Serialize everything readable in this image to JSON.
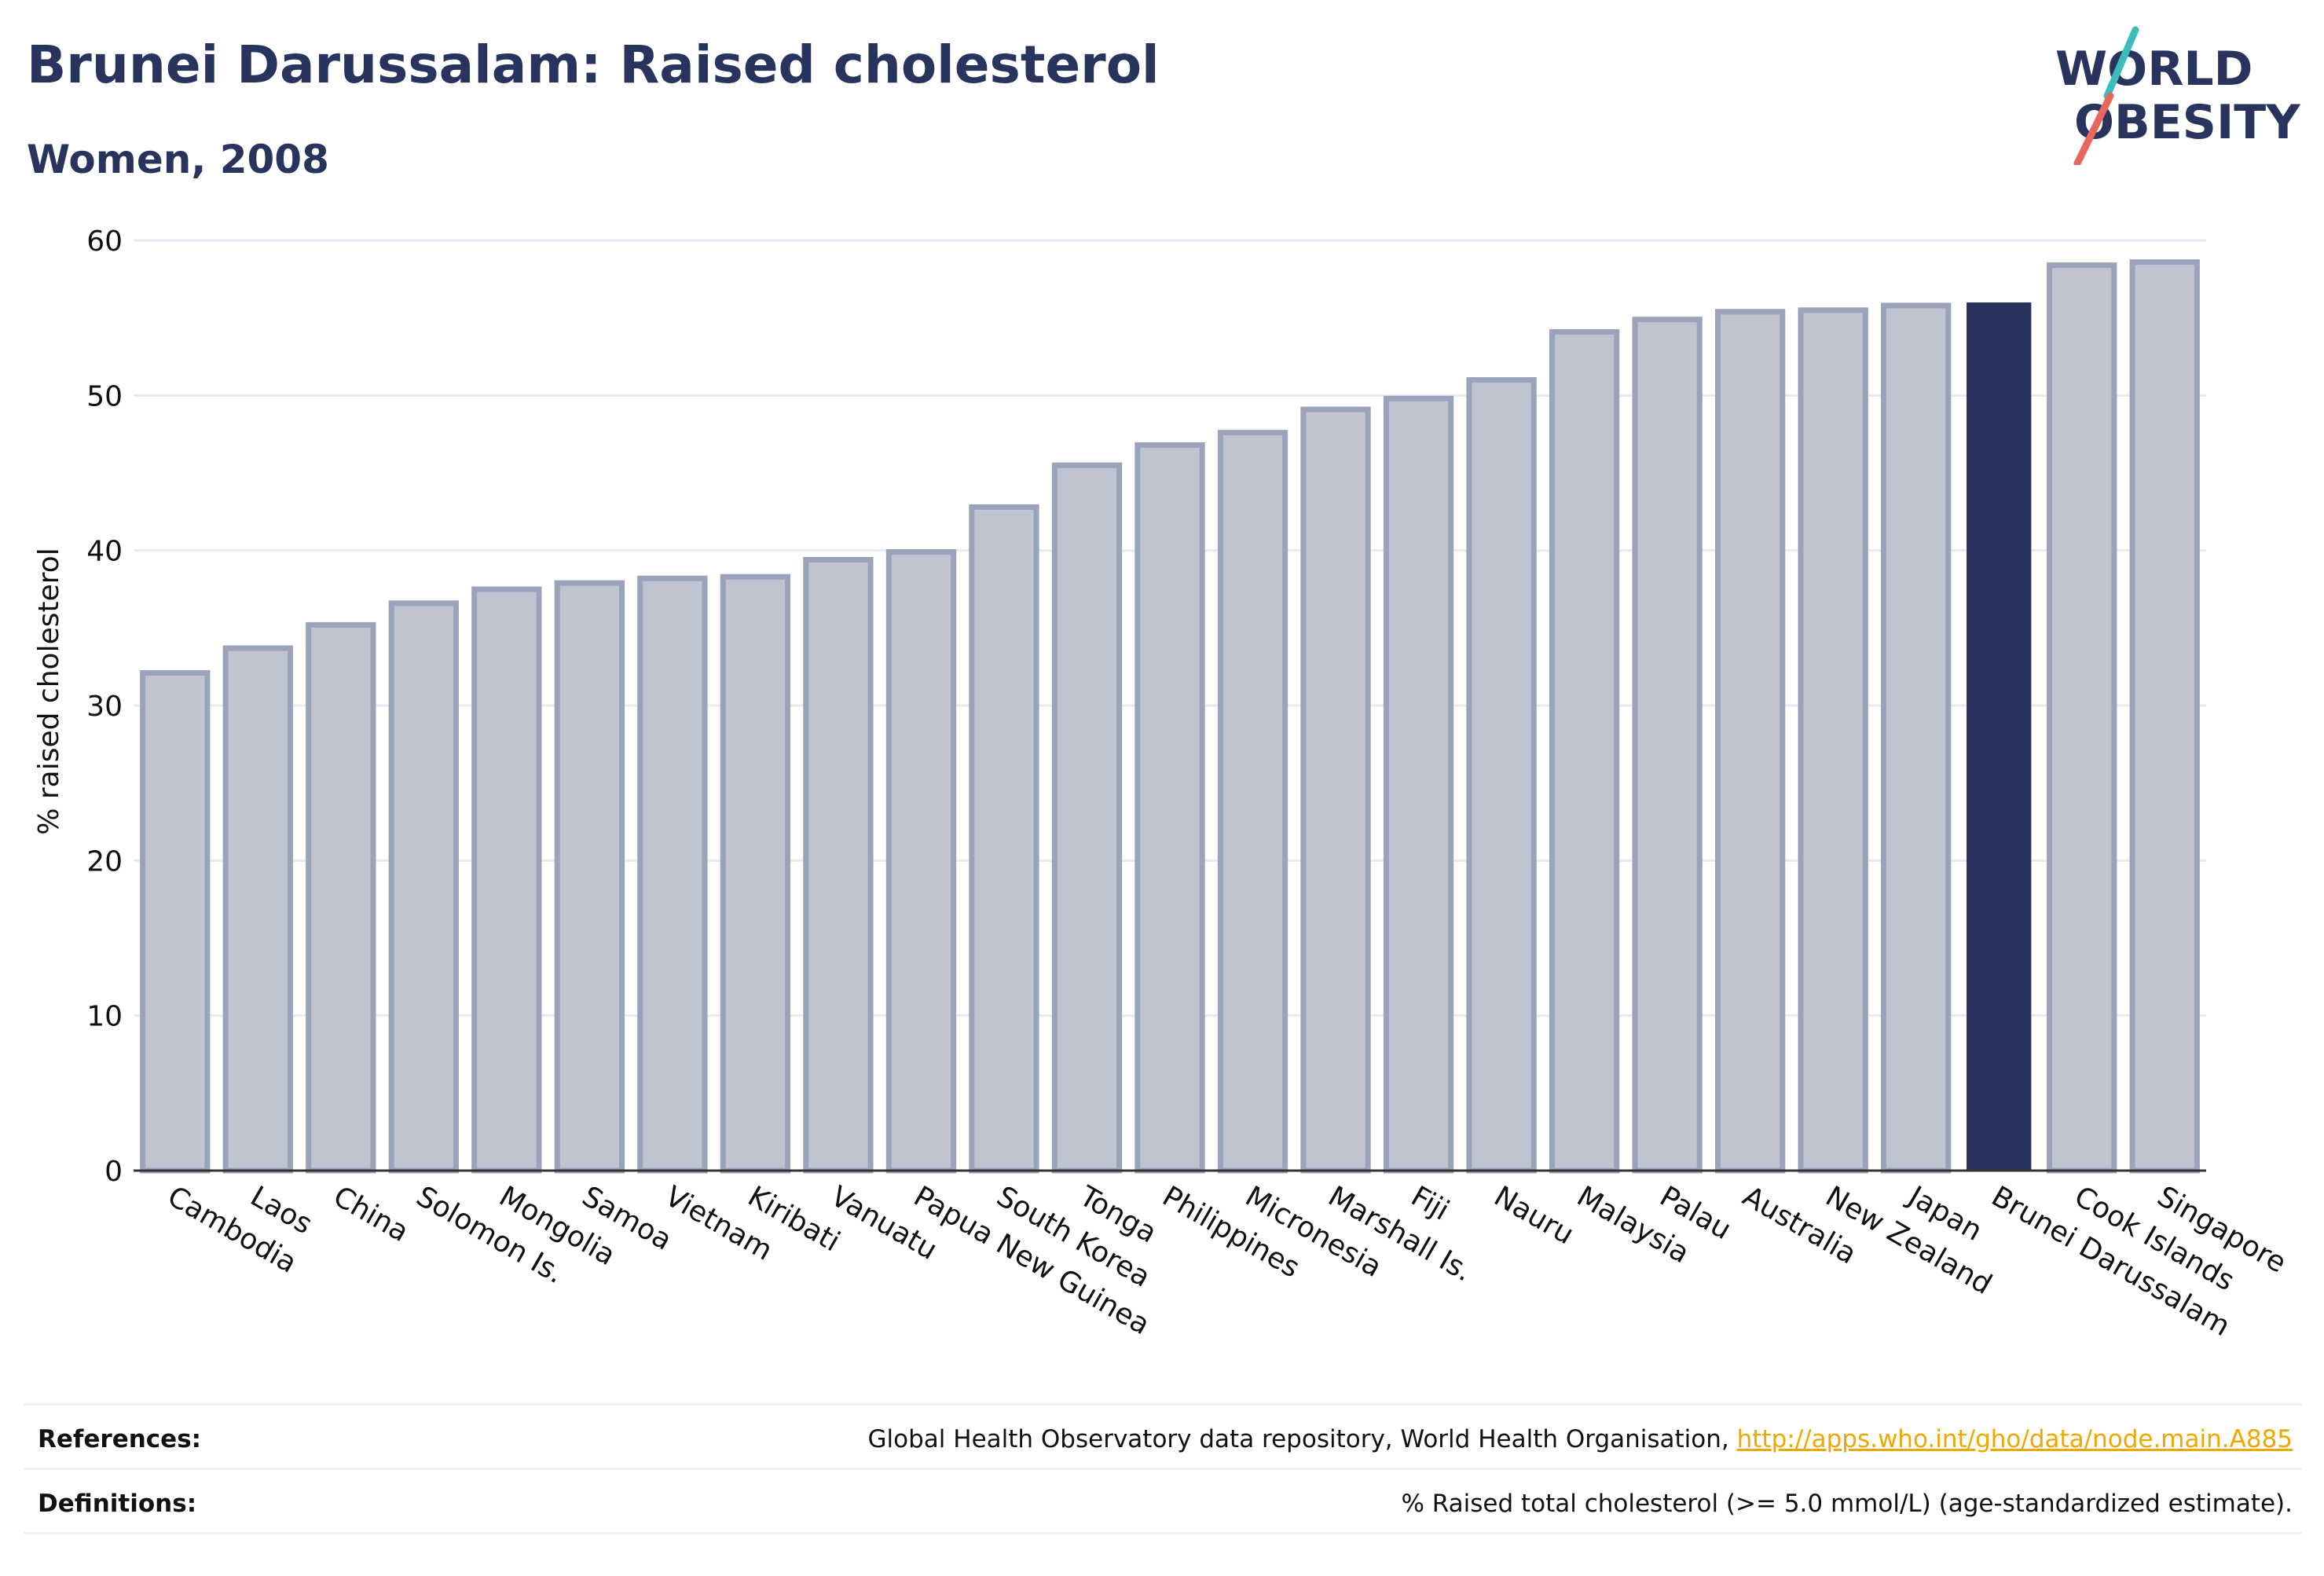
{
  "header": {
    "title": "Brunei Darussalam: Raised cholesterol",
    "subtitle": "Women, 2008"
  },
  "logo": {
    "line1": "WORLD",
    "line2": "OBESITY"
  },
  "chart_data": {
    "type": "bar",
    "ylabel": "% raised cholesterol",
    "ylim": [
      0,
      60
    ],
    "yticks": [
      0,
      10,
      20,
      30,
      40,
      50,
      60
    ],
    "grid": true,
    "highlight": "Brunei Darussalam",
    "categories": [
      "Cambodia",
      "Laos",
      "China",
      "Solomon Is.",
      "Mongolia",
      "Samoa",
      "Vietnam",
      "Kiribati",
      "Vanuatu",
      "Papua New Guinea",
      "South Korea",
      "Tonga",
      "Philippines",
      "Micronesia",
      "Marshall Is.",
      "Fiji",
      "Nauru",
      "Malaysia",
      "Palau",
      "Australia",
      "New Zealand",
      "Japan",
      "Brunei Darussalam",
      "Cook Islands",
      "Singapore"
    ],
    "values": [
      32.1,
      33.7,
      35.2,
      36.6,
      37.5,
      37.9,
      38.2,
      38.3,
      39.4,
      39.9,
      42.8,
      45.5,
      46.8,
      47.6,
      49.1,
      49.8,
      51.0,
      54.1,
      54.9,
      55.4,
      55.5,
      55.8,
      56.0,
      58.4,
      58.6
    ]
  },
  "colors": {
    "bar_fill": "#c0c4d0",
    "bar_border": "#9ba3ba",
    "highlight": "#28345e",
    "grid": "#e8eaf0",
    "text": "#28345e",
    "link": "#f0a800"
  },
  "footer": {
    "references_label": "References:",
    "references_text": "Global Health Observatory data repository, World Health Organisation, ",
    "references_link": "http://apps.who.int/gho/data/node.main.A885",
    "definitions_label": "Definitions:",
    "definitions_text": "% Raised total cholesterol (>= 5.0 mmol/L) (age-standardized estimate)."
  }
}
